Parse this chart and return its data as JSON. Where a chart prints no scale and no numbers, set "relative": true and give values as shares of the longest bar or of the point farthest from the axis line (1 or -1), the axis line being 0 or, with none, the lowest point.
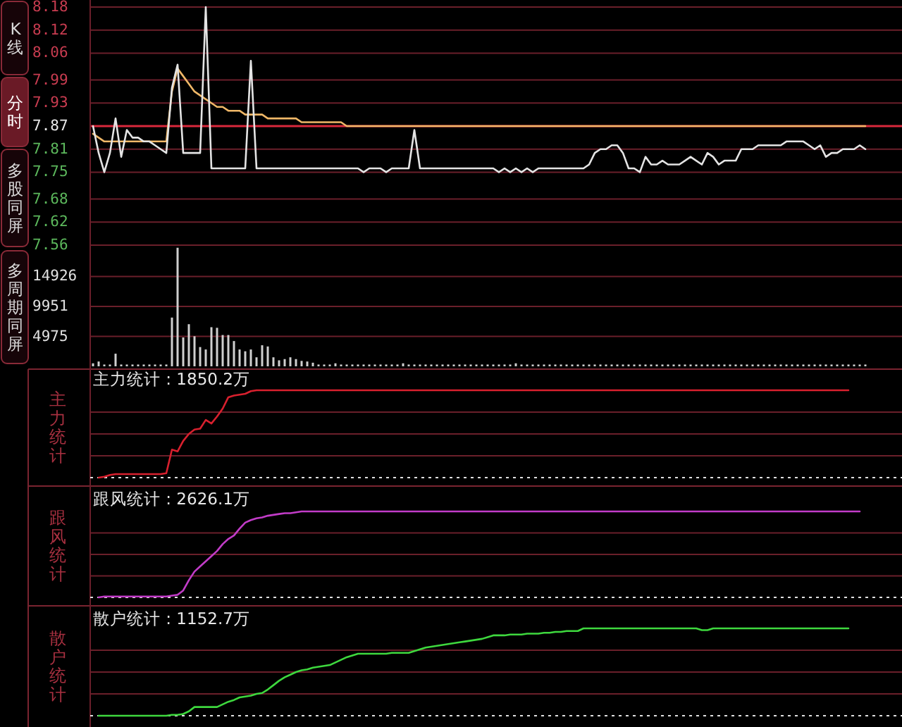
{
  "chart_data": [
    {
      "type": "line",
      "annotations": [
        "K线",
        "分时",
        "多股同屏",
        "多周期同屏"
      ],
      "tick_labels": "y",
      "grid": "y",
      "ylim": [
        7.56,
        8.18
      ],
      "yticks": [
        7.56,
        7.62,
        7.68,
        7.75,
        7.81,
        7.87,
        7.93,
        7.99,
        8.06,
        8.12,
        8.18
      ],
      "ref_lines": [
        {
          "axis": "y",
          "value": 7.87,
          "color": "#d8283c"
        }
      ],
      "categories": [
        null,
        null,
        null,
        null,
        null,
        null,
        null,
        null,
        null,
        null,
        null,
        null,
        null,
        null,
        null,
        null,
        null,
        null,
        null,
        null,
        null,
        null,
        null,
        null,
        null,
        null,
        null,
        null,
        null,
        null,
        null,
        null,
        null,
        null,
        null,
        null,
        null,
        null,
        null,
        null,
        null,
        null,
        null,
        null,
        null,
        null,
        null,
        null,
        null,
        null,
        null,
        null,
        null,
        null,
        null,
        null,
        null,
        null,
        null,
        null,
        null,
        null,
        null,
        null,
        null,
        null,
        null,
        null,
        null,
        null,
        null,
        null,
        null,
        null,
        null,
        null,
        null,
        null,
        null,
        null,
        null,
        null,
        null,
        null,
        null,
        null,
        null,
        null,
        null,
        null,
        null,
        null,
        null,
        null,
        null,
        null,
        null,
        null,
        null,
        null,
        null,
        null,
        null,
        null,
        null,
        null,
        null,
        null,
        null,
        null,
        null,
        null,
        null,
        null,
        null,
        null,
        null,
        null,
        null,
        null,
        null,
        null,
        null,
        null,
        null,
        null,
        null,
        null,
        null,
        null,
        null,
        null,
        null,
        null,
        null,
        null,
        null,
        null,
        null,
        null,
        null,
        null,
        null,
        null
      ],
      "series": [
        {
          "color": "#f0b868",
          "values": [
            7.85,
            7.84,
            7.83,
            7.83,
            7.83,
            7.83,
            7.83,
            7.83,
            7.83,
            7.83,
            7.83,
            7.83,
            7.83,
            7.83,
            7.96,
            8.02,
            8.0,
            7.98,
            7.96,
            7.95,
            7.94,
            7.93,
            7.92,
            7.92,
            7.91,
            7.91,
            7.91,
            7.9,
            7.9,
            7.9,
            7.9,
            7.89,
            7.89,
            7.89,
            7.89,
            7.89,
            7.89,
            7.88,
            7.88,
            7.88,
            7.88,
            7.88,
            7.88,
            7.88,
            7.88,
            7.87,
            7.87,
            7.87,
            7.87,
            7.87,
            7.87,
            7.87,
            7.87,
            7.87,
            7.87,
            7.87,
            7.87,
            7.87,
            7.87,
            7.87,
            7.87,
            7.87,
            7.87,
            7.87,
            7.87,
            7.87,
            7.87,
            7.87,
            7.87,
            7.87,
            7.87,
            7.87,
            7.87,
            7.87,
            7.87,
            7.87,
            7.87,
            7.87,
            7.87,
            7.87,
            7.87,
            7.87,
            7.87,
            7.87,
            7.87,
            7.87,
            7.87,
            7.87,
            7.87,
            7.87,
            7.87,
            7.87,
            7.87,
            7.87,
            7.87,
            7.87,
            7.87,
            7.87,
            7.87,
            7.87,
            7.87,
            7.87,
            7.87,
            7.87,
            7.87,
            7.87,
            7.87,
            7.87,
            7.87,
            7.87,
            7.87,
            7.87,
            7.87,
            7.87,
            7.87,
            7.87,
            7.87,
            7.87,
            7.87,
            7.87,
            7.87,
            7.87,
            7.87,
            7.87,
            7.87,
            7.87,
            7.87,
            7.87,
            7.87,
            7.87,
            7.87,
            7.87,
            7.87,
            7.87,
            7.87,
            7.87,
            7.87,
            7.87,
            null,
            null,
            null,
            null,
            null,
            null
          ]
        },
        {
          "color": "#e4e4e4",
          "values": [
            7.87,
            7.8,
            7.75,
            7.8,
            7.89,
            7.79,
            7.86,
            7.84,
            7.84,
            7.83,
            7.83,
            7.82,
            7.81,
            7.8,
            7.97,
            8.03,
            7.8,
            7.8,
            7.8,
            7.8,
            8.18,
            7.76,
            7.76,
            7.76,
            7.76,
            7.76,
            7.76,
            7.76,
            8.04,
            7.76,
            7.76,
            7.76,
            7.76,
            7.76,
            7.76,
            7.76,
            7.76,
            7.76,
            7.76,
            7.76,
            7.76,
            7.76,
            7.76,
            7.76,
            7.76,
            7.76,
            7.76,
            7.76,
            7.75,
            7.76,
            7.76,
            7.76,
            7.75,
            7.76,
            7.76,
            7.76,
            7.76,
            7.86,
            7.76,
            7.76,
            7.76,
            7.76,
            7.76,
            7.76,
            7.76,
            7.76,
            7.76,
            7.76,
            7.76,
            7.76,
            7.76,
            7.76,
            7.75,
            7.76,
            7.75,
            7.76,
            7.75,
            7.76,
            7.75,
            7.76,
            7.76,
            7.76,
            7.76,
            7.76,
            7.76,
            7.76,
            7.76,
            7.76,
            7.77,
            7.8,
            7.81,
            7.81,
            7.82,
            7.82,
            7.8,
            7.76,
            7.76,
            7.75,
            7.79,
            7.77,
            7.77,
            7.78,
            7.77,
            7.77,
            7.77,
            7.78,
            7.79,
            7.78,
            7.77,
            7.8,
            7.79,
            7.77,
            7.78,
            7.78,
            7.78,
            7.81,
            7.81,
            7.81,
            7.82,
            7.82,
            7.82,
            7.82,
            7.82,
            7.83,
            7.83,
            7.83,
            7.83,
            7.82,
            7.81,
            7.82,
            7.79,
            7.8,
            7.8,
            7.81,
            7.81,
            7.81,
            7.82,
            7.81,
            null,
            null,
            null,
            null,
            null,
            null
          ]
        }
      ]
    },
    {
      "type": "bar",
      "tick_labels": "y",
      "grid": "y",
      "ylim": [
        0,
        19900
      ],
      "yticks": [
        4975,
        9951,
        14926
      ],
      "categories": [
        null,
        null,
        null,
        null,
        null,
        null,
        null,
        null,
        null,
        null,
        null,
        null,
        null,
        null,
        null,
        null,
        null,
        null,
        null,
        null,
        null,
        null,
        null,
        null,
        null,
        null,
        null,
        null,
        null,
        null,
        null,
        null,
        null,
        null,
        null,
        null,
        null,
        null,
        null,
        null,
        null,
        null,
        null,
        null,
        null,
        null,
        null,
        null,
        null,
        null,
        null,
        null,
        null,
        null,
        null,
        null,
        null,
        null,
        null,
        null,
        null,
        null,
        null,
        null,
        null,
        null,
        null,
        null,
        null,
        null,
        null,
        null,
        null,
        null,
        null,
        null,
        null,
        null,
        null,
        null,
        null,
        null,
        null,
        null,
        null,
        null,
        null,
        null,
        null,
        null,
        null,
        null,
        null,
        null,
        null,
        null,
        null,
        null,
        null,
        null,
        null,
        null,
        null,
        null,
        null,
        null,
        null,
        null,
        null,
        null,
        null,
        null,
        null,
        null,
        null,
        null,
        null,
        null,
        null,
        null,
        null,
        null,
        null,
        null,
        null,
        null,
        null,
        null,
        null,
        null,
        null,
        null,
        null,
        null,
        null,
        null,
        null,
        null,
        null,
        null,
        null,
        null,
        null,
        null
      ],
      "series": [
        {
          "color": "#cfcfcf",
          "values": [
            500,
            800,
            300,
            300,
            2100,
            300,
            300,
            300,
            300,
            300,
            300,
            300,
            300,
            300,
            8100,
            19700,
            4800,
            7000,
            5000,
            3200,
            2800,
            6500,
            6400,
            5200,
            5200,
            4200,
            2800,
            2500,
            2800,
            1500,
            3500,
            3300,
            1500,
            1000,
            1200,
            1500,
            1200,
            900,
            800,
            600,
            300,
            300,
            300,
            500,
            300,
            300,
            300,
            300,
            300,
            300,
            300,
            300,
            300,
            300,
            300,
            500,
            300,
            300,
            300,
            300,
            300,
            300,
            300,
            300,
            300,
            300,
            300,
            300,
            300,
            300,
            300,
            300,
            300,
            300,
            300,
            500,
            300,
            300,
            300,
            300,
            300,
            300,
            300,
            300,
            300,
            300,
            300,
            300,
            300,
            300,
            300,
            300,
            300,
            300,
            300,
            300,
            300,
            300,
            300,
            300,
            300,
            300,
            300,
            300,
            300,
            300,
            300,
            300,
            300,
            300,
            300,
            300,
            300,
            300,
            300,
            300,
            300,
            300,
            300,
            300,
            300,
            300,
            300,
            300,
            300,
            300,
            300,
            300,
            300,
            300,
            300,
            300,
            300,
            300,
            300,
            300,
            300,
            300,
            null,
            null,
            null,
            null,
            null,
            null
          ]
        }
      ]
    },
    {
      "type": "line",
      "title": "主力统计 : 1850.2万",
      "ylabel": "主力统计",
      "relative": true,
      "tick_labels": false,
      "ref_lines": [
        {
          "axis": "y",
          "value": 0.25,
          "color": "#6a1f2a"
        },
        {
          "axis": "y",
          "value": 0.5,
          "color": "#6a1f2a"
        },
        {
          "axis": "y",
          "value": 0.75,
          "color": "#6a1f2a"
        }
      ],
      "categories": [
        null,
        null,
        null,
        null,
        null,
        null,
        null,
        null,
        null,
        null,
        null,
        null,
        null,
        null,
        null,
        null,
        null,
        null,
        null,
        null,
        null,
        null,
        null,
        null,
        null,
        null,
        null,
        null,
        null,
        null,
        null,
        null,
        null,
        null,
        null,
        null,
        null,
        null,
        null,
        null,
        null,
        null,
        null,
        null,
        null,
        null,
        null,
        null,
        null,
        null,
        null,
        null,
        null,
        null,
        null,
        null,
        null,
        null,
        null,
        null,
        null,
        null,
        null,
        null,
        null,
        null,
        null,
        null,
        null,
        null,
        null,
        null,
        null,
        null,
        null,
        null,
        null,
        null,
        null,
        null,
        null,
        null,
        null,
        null,
        null,
        null,
        null,
        null,
        null,
        null,
        null,
        null,
        null,
        null,
        null,
        null,
        null,
        null,
        null,
        null,
        null,
        null,
        null,
        null,
        null,
        null,
        null,
        null,
        null,
        null,
        null,
        null,
        null,
        null,
        null,
        null,
        null,
        null,
        null,
        null,
        null,
        null,
        null,
        null,
        null,
        null,
        null,
        null,
        null,
        null,
        null,
        null,
        null,
        null,
        null,
        null,
        null,
        null,
        null,
        null,
        null,
        null,
        null,
        null
      ],
      "series": [
        {
          "color": "#d8202e",
          "values": [
            null,
            0,
            0.01,
            0.03,
            0.04,
            0.04,
            0.04,
            0.04,
            0.04,
            0.04,
            0.04,
            0.04,
            0.04,
            0.05,
            0.32,
            0.3,
            0.42,
            0.5,
            0.55,
            0.56,
            0.66,
            0.62,
            0.7,
            0.79,
            0.92,
            0.94,
            0.95,
            0.96,
            0.99,
            1,
            1,
            1,
            1,
            1,
            1,
            1,
            1,
            1,
            1,
            1,
            1,
            1,
            1,
            1,
            1,
            1,
            1,
            1,
            1,
            1,
            1,
            1,
            1,
            1,
            1,
            1,
            1,
            1,
            1,
            1,
            1,
            1,
            1,
            1,
            1,
            1,
            1,
            1,
            1,
            1,
            1,
            1,
            1,
            1,
            1,
            1,
            1,
            1,
            1,
            1,
            1,
            1,
            1,
            1,
            1,
            1,
            1,
            1,
            1,
            1,
            1,
            1,
            1,
            1,
            1,
            1,
            1,
            1,
            1,
            1,
            1,
            1,
            1,
            1,
            1,
            1,
            1,
            1,
            1,
            1,
            1,
            1,
            1,
            1,
            1,
            1,
            1,
            1,
            1,
            1,
            1,
            1,
            1,
            1,
            1,
            1,
            1,
            1,
            1,
            1,
            1,
            1,
            1,
            1,
            1,
            null,
            null,
            null,
            null,
            null,
            null,
            null,
            null,
            null
          ]
        }
      ]
    },
    {
      "type": "line",
      "title": "跟风统计 : 2626.1万",
      "ylabel": "跟风统计",
      "relative": true,
      "tick_labels": false,
      "ref_lines": [
        {
          "axis": "y",
          "value": 0.25,
          "color": "#6a1f2a"
        },
        {
          "axis": "y",
          "value": 0.5,
          "color": "#6a1f2a"
        },
        {
          "axis": "y",
          "value": 0.75,
          "color": "#6a1f2a"
        }
      ],
      "categories": [
        null,
        null,
        null,
        null,
        null,
        null,
        null,
        null,
        null,
        null,
        null,
        null,
        null,
        null,
        null,
        null,
        null,
        null,
        null,
        null,
        null,
        null,
        null,
        null,
        null,
        null,
        null,
        null,
        null,
        null,
        null,
        null,
        null,
        null,
        null,
        null,
        null,
        null,
        null,
        null,
        null,
        null,
        null,
        null,
        null,
        null,
        null,
        null,
        null,
        null,
        null,
        null,
        null,
        null,
        null,
        null,
        null,
        null,
        null,
        null,
        null,
        null,
        null,
        null,
        null,
        null,
        null,
        null,
        null,
        null,
        null,
        null,
        null,
        null,
        null,
        null,
        null,
        null,
        null,
        null,
        null,
        null,
        null,
        null,
        null,
        null,
        null,
        null,
        null,
        null,
        null,
        null,
        null,
        null,
        null,
        null,
        null,
        null,
        null,
        null,
        null,
        null,
        null,
        null,
        null,
        null,
        null,
        null,
        null,
        null,
        null,
        null,
        null,
        null,
        null,
        null,
        null,
        null,
        null,
        null,
        null,
        null,
        null,
        null,
        null,
        null,
        null,
        null,
        null,
        null,
        null,
        null,
        null,
        null,
        null,
        null,
        null,
        null,
        null,
        null,
        null,
        null,
        null,
        null
      ],
      "series": [
        {
          "color": "#c23cc8",
          "values": [
            null,
            0,
            0.01,
            0.01,
            0.01,
            0.01,
            0.01,
            0.01,
            0.01,
            0.01,
            0.01,
            0.01,
            0.01,
            0.01,
            0.02,
            0.03,
            0.08,
            0.2,
            0.3,
            0.36,
            0.42,
            0.48,
            0.54,
            0.62,
            0.68,
            0.72,
            0.8,
            0.87,
            0.9,
            0.92,
            0.93,
            0.95,
            0.96,
            0.97,
            0.98,
            0.98,
            0.99,
            1,
            1,
            1,
            1,
            1,
            1,
            1,
            1,
            1,
            1,
            1,
            1,
            1,
            1,
            1,
            1,
            1,
            1,
            1,
            1,
            1,
            1,
            1,
            1,
            1,
            1,
            1,
            1,
            1,
            1,
            1,
            1,
            1,
            1,
            1,
            1,
            1,
            1,
            1,
            1,
            1,
            1,
            1,
            1,
            1,
            1,
            1,
            1,
            1,
            1,
            1,
            1,
            1,
            1,
            1,
            1,
            1,
            1,
            1,
            1,
            1,
            1,
            1,
            1,
            1,
            1,
            1,
            1,
            1,
            1,
            1,
            1,
            1,
            1,
            1,
            1,
            1,
            1,
            1,
            1,
            1,
            1,
            1,
            1,
            1,
            1,
            1,
            1,
            1,
            1,
            1,
            1,
            1,
            1,
            1,
            1,
            1,
            1,
            1,
            1,
            null,
            null,
            null,
            null,
            null,
            null,
            null
          ]
        }
      ]
    },
    {
      "type": "line",
      "title": "散户统计 : 1152.7万",
      "ylabel": "散户统计",
      "relative": true,
      "tick_labels": false,
      "ref_lines": [
        {
          "axis": "y",
          "value": 0.25,
          "color": "#6a1f2a"
        },
        {
          "axis": "y",
          "value": 0.5,
          "color": "#6a1f2a"
        },
        {
          "axis": "y",
          "value": 0.75,
          "color": "#6a1f2a"
        }
      ],
      "categories": [
        null,
        null,
        null,
        null,
        null,
        null,
        null,
        null,
        null,
        null,
        null,
        null,
        null,
        null,
        null,
        null,
        null,
        null,
        null,
        null,
        null,
        null,
        null,
        null,
        null,
        null,
        null,
        null,
        null,
        null,
        null,
        null,
        null,
        null,
        null,
        null,
        null,
        null,
        null,
        null,
        null,
        null,
        null,
        null,
        null,
        null,
        null,
        null,
        null,
        null,
        null,
        null,
        null,
        null,
        null,
        null,
        null,
        null,
        null,
        null,
        null,
        null,
        null,
        null,
        null,
        null,
        null,
        null,
        null,
        null,
        null,
        null,
        null,
        null,
        null,
        null,
        null,
        null,
        null,
        null,
        null,
        null,
        null,
        null,
        null,
        null,
        null,
        null,
        null,
        null,
        null,
        null,
        null,
        null,
        null,
        null,
        null,
        null,
        null,
        null,
        null,
        null,
        null,
        null,
        null,
        null,
        null,
        null,
        null,
        null,
        null,
        null,
        null,
        null,
        null,
        null,
        null,
        null,
        null,
        null,
        null,
        null,
        null,
        null,
        null,
        null,
        null,
        null,
        null,
        null,
        null,
        null,
        null,
        null,
        null,
        null,
        null,
        null,
        null,
        null,
        null,
        null,
        null,
        null
      ],
      "series": [
        {
          "color": "#3ed83e",
          "values": [
            null,
            0,
            0,
            0,
            0,
            0,
            0,
            0,
            0,
            0,
            0,
            0,
            0,
            0,
            0.01,
            0.01,
            0.02,
            0.05,
            0.1,
            0.1,
            0.1,
            0.1,
            0.1,
            0.13,
            0.16,
            0.18,
            0.21,
            0.22,
            0.23,
            0.25,
            0.26,
            0.3,
            0.35,
            0.4,
            0.44,
            0.47,
            0.5,
            0.52,
            0.53,
            0.55,
            0.56,
            0.57,
            0.58,
            0.61,
            0.64,
            0.67,
            0.69,
            0.71,
            0.71,
            0.71,
            0.71,
            0.71,
            0.71,
            0.72,
            0.72,
            0.72,
            0.72,
            0.74,
            0.76,
            0.78,
            0.79,
            0.8,
            0.81,
            0.82,
            0.83,
            0.84,
            0.85,
            0.86,
            0.87,
            0.88,
            0.9,
            0.92,
            0.92,
            0.92,
            0.93,
            0.93,
            0.93,
            0.94,
            0.94,
            0.94,
            0.95,
            0.95,
            0.96,
            0.96,
            0.97,
            0.97,
            0.97,
            1,
            1,
            1,
            1,
            1,
            1,
            1,
            1,
            1,
            1,
            1,
            1,
            1,
            1,
            1,
            1,
            1,
            1,
            1,
            1,
            1,
            0.98,
            0.98,
            1,
            1,
            1,
            1,
            1,
            1,
            1,
            1,
            1,
            1,
            1,
            1,
            1,
            1,
            1,
            1,
            1,
            1,
            1,
            1,
            1,
            1,
            1,
            1,
            1,
            null,
            null,
            null,
            null,
            null,
            null,
            null,
            null,
            null
          ]
        }
      ]
    }
  ]
}
